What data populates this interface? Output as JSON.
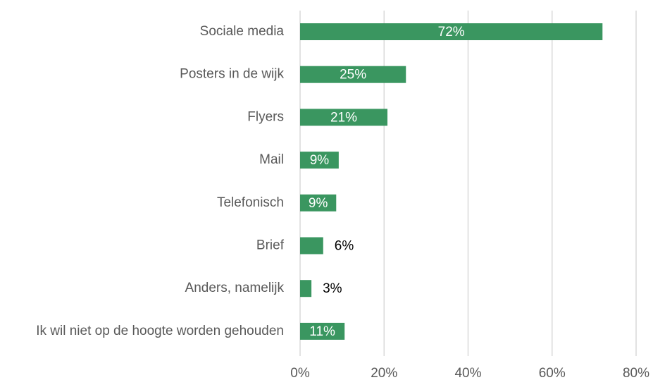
{
  "chart_data": {
    "type": "barh",
    "categories": [
      "Sociale media",
      "Posters in de wijk",
      "Flyers",
      "Mail",
      "Telefonisch",
      "Brief",
      "Anders, namelijk",
      "Ik wil niet op de hoogte worden gehouden"
    ],
    "values": [
      72,
      25.2,
      20.8,
      9.2,
      8.6,
      5.5,
      2.7,
      10.6
    ],
    "value_labels": [
      "72%",
      "25%",
      "21%",
      "9%",
      "9%",
      "6%",
      "3%",
      "11%"
    ],
    "color": "#3a9660",
    "xlim": [
      0,
      80
    ],
    "xticks": [
      {
        "value": 0,
        "label": "0%"
      },
      {
        "value": 20,
        "label": "20%"
      },
      {
        "value": 40,
        "label": "40%"
      },
      {
        "value": 60,
        "label": "60%"
      },
      {
        "value": 80,
        "label": "80%"
      }
    ],
    "grid": true
  }
}
